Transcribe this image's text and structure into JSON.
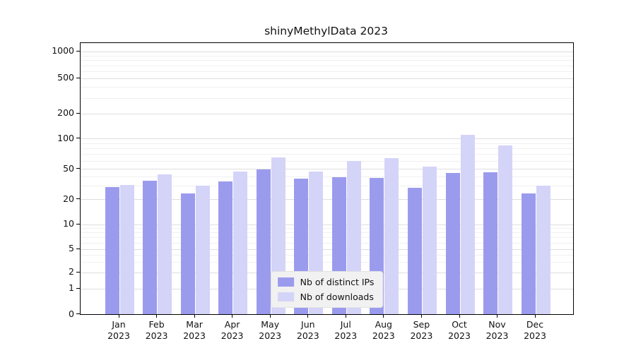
{
  "title": "shinyMethylData 2023",
  "chart_data": {
    "type": "bar",
    "title": "shinyMethylData 2023",
    "x_months": [
      "Jan",
      "Feb",
      "Mar",
      "Apr",
      "May",
      "Jun",
      "Jul",
      "Aug",
      "Sep",
      "Oct",
      "Nov",
      "Dec"
    ],
    "x_year": "2023",
    "series": [
      {
        "name": "Nb of distinct IPs",
        "color": "#9b9bee",
        "values": [
          29,
          35,
          24,
          34,
          49,
          37,
          39,
          38,
          28,
          44,
          45,
          24
        ]
      },
      {
        "name": "Nb of downloads",
        "color": "#d4d4f9",
        "values": [
          31,
          42,
          30,
          46,
          65,
          46,
          60,
          64,
          53,
          110,
          85,
          30
        ]
      }
    ],
    "y_ticks": [
      0,
      1,
      2,
      5,
      10,
      20,
      50,
      100,
      200,
      500,
      1000
    ],
    "y_scale": "log-like",
    "ylim": [
      0,
      1000
    ],
    "grid": "horizontal",
    "legend": {
      "position": "bottom-center-inside",
      "labels": [
        "Nb of distinct IPs",
        "Nb of downloads"
      ]
    }
  }
}
